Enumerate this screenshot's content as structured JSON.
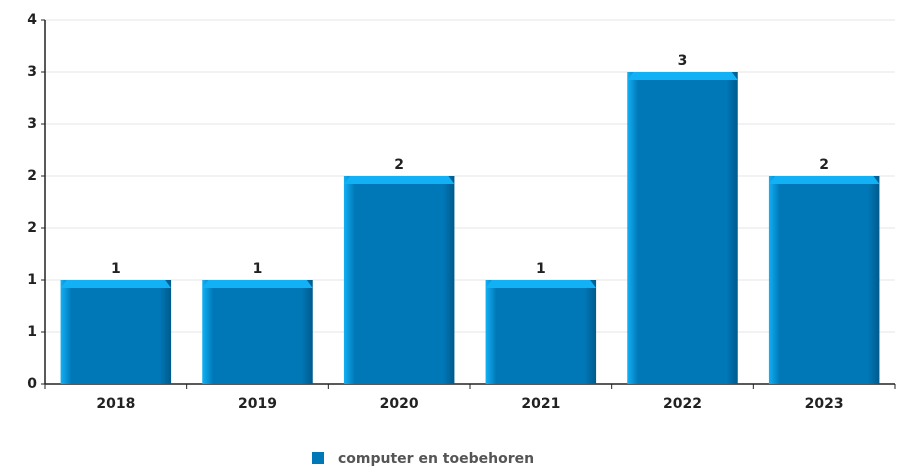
{
  "chart_data": {
    "type": "bar",
    "categories": [
      "2018",
      "2019",
      "2020",
      "2021",
      "2022",
      "2023"
    ],
    "series": [
      {
        "name": "computer en toebehoren",
        "color": "#0077b6",
        "values": [
          1,
          1,
          2,
          1,
          3,
          2
        ]
      }
    ],
    "ylim": [
      0,
      3.5
    ],
    "yticks": [
      0,
      {
        "value": 0.5,
        "label": "1"
      },
      1,
      {
        "value": 1.5,
        "label": "2"
      },
      2,
      {
        "value": 2.5,
        "label": "3"
      },
      3,
      {
        "value": 3.5,
        "label": "4"
      }
    ],
    "grid": true,
    "legend": "bottom"
  }
}
